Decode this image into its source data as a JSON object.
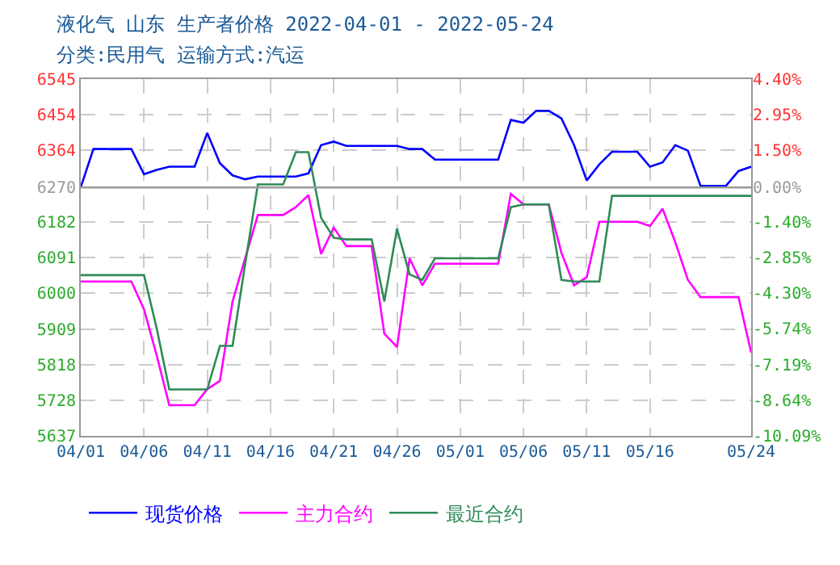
{
  "chart_data": {
    "type": "line",
    "title": "液化气 山东 生产者价格 2022-04-01 - 2022-05-24",
    "subtitle": "分类:民用气 运输方式:汽运",
    "x": [
      "2022-04-01",
      "2022-04-02",
      "2022-04-03",
      "2022-04-04",
      "2022-04-05",
      "2022-04-06",
      "2022-04-07",
      "2022-04-08",
      "2022-04-09",
      "2022-04-10",
      "2022-04-11",
      "2022-04-12",
      "2022-04-13",
      "2022-04-14",
      "2022-04-15",
      "2022-04-16",
      "2022-04-17",
      "2022-04-18",
      "2022-04-19",
      "2022-04-20",
      "2022-04-21",
      "2022-04-22",
      "2022-04-23",
      "2022-04-24",
      "2022-04-25",
      "2022-04-26",
      "2022-04-27",
      "2022-04-28",
      "2022-04-29",
      "2022-04-30",
      "2022-05-01",
      "2022-05-02",
      "2022-05-03",
      "2022-05-04",
      "2022-05-05",
      "2022-05-06",
      "2022-05-07",
      "2022-05-08",
      "2022-05-09",
      "2022-05-10",
      "2022-05-11",
      "2022-05-12",
      "2022-05-13",
      "2022-05-14",
      "2022-05-15",
      "2022-05-16",
      "2022-05-17",
      "2022-05-18",
      "2022-05-19",
      "2022-05-20",
      "2022-05-21",
      "2022-05-22",
      "2022-05-23",
      "2022-05-24"
    ],
    "series": [
      {
        "name": "现货价格",
        "color": "#0000ff",
        "values": [
          6270,
          6367,
          6367,
          6367,
          6367,
          6303,
          6314,
          6322,
          6322,
          6322,
          6408,
          6331,
          6300,
          6290,
          6297,
          6297,
          6297,
          6297,
          6305,
          6377,
          6386,
          6375,
          6375,
          6375,
          6375,
          6375,
          6367,
          6367,
          6340,
          6340,
          6340,
          6340,
          6340,
          6340,
          6441,
          6434,
          6464,
          6464,
          6445,
          6377,
          6287,
          6328,
          6360,
          6360,
          6360,
          6322,
          6333,
          6377,
          6363,
          6273,
          6273,
          6273,
          6311,
          6322
        ]
      },
      {
        "name": "主力合约",
        "color": "#ff00ff",
        "values": [
          6030,
          6030,
          6030,
          6030,
          6030,
          5959,
          5842,
          5715,
          5715,
          5715,
          5756,
          5777,
          5979,
          6089,
          6199,
          6199,
          6199,
          6219,
          6250,
          6100,
          6167,
          6120,
          6120,
          6120,
          5897,
          5863,
          6089,
          6020,
          6075,
          6075,
          6075,
          6075,
          6075,
          6075,
          6253,
          6226,
          6226,
          6226,
          6103,
          6020,
          6041,
          6182,
          6182,
          6182,
          6182,
          6171,
          6215,
          6130,
          6034,
          5990,
          5990,
          5990,
          5990,
          5849
        ]
      },
      {
        "name": "最近合约",
        "color": "#2e8b57",
        "values": [
          6046,
          6046,
          6046,
          6046,
          6046,
          6046,
          5911,
          5755,
          5755,
          5755,
          5755,
          5866,
          5866,
          6075,
          6277,
          6277,
          6277,
          6359,
          6359,
          6192,
          6141,
          6137,
          6137,
          6137,
          5979,
          6164,
          6048,
          6034,
          6089,
          6089,
          6089,
          6089,
          6089,
          6089,
          6219,
          6226,
          6226,
          6226,
          6034,
          6030,
          6030,
          6030,
          6248,
          6248,
          6248,
          6248,
          6248,
          6248,
          6248,
          6248,
          6248,
          6248,
          6248,
          6248
        ]
      }
    ],
    "xlim": [
      "2022-04-01",
      "2022-05-24"
    ],
    "xticks": [
      {
        "value": "2022-04-01",
        "label": "04/01"
      },
      {
        "value": "2022-04-06",
        "label": "04/06"
      },
      {
        "value": "2022-04-11",
        "label": "04/11"
      },
      {
        "value": "2022-04-16",
        "label": "04/16"
      },
      {
        "value": "2022-04-21",
        "label": "04/21"
      },
      {
        "value": "2022-04-26",
        "label": "04/26"
      },
      {
        "value": "2022-05-01",
        "label": "05/01"
      },
      {
        "value": "2022-05-06",
        "label": "05/06"
      },
      {
        "value": "2022-05-11",
        "label": "05/11"
      },
      {
        "value": "2022-05-16",
        "label": "05/16"
      },
      {
        "value": "2022-05-24",
        "label": "05/24"
      }
    ],
    "ylim": [
      5637,
      6545
    ],
    "yticks": [
      5637,
      5728,
      5818,
      5909,
      6000,
      6091,
      6182,
      6270,
      6364,
      6454,
      6545
    ],
    "y2lim": [
      -10.09,
      4.4
    ],
    "y2ticks": [
      {
        "value": -10.09,
        "label": "-10.09%"
      },
      {
        "value": -8.64,
        "label": "-8.64%"
      },
      {
        "value": -7.19,
        "label": "-7.19%"
      },
      {
        "value": -5.74,
        "label": "-5.74%"
      },
      {
        "value": -4.3,
        "label": "-4.30%"
      },
      {
        "value": -2.85,
        "label": "-2.85%"
      },
      {
        "value": -1.4,
        "label": "-1.40%"
      },
      {
        "value": 0,
        "label": "0.00%"
      },
      {
        "value": 1.5,
        "label": "1.50%"
      },
      {
        "value": 2.95,
        "label": "2.95%"
      },
      {
        "value": 4.4,
        "label": "4.40%"
      }
    ],
    "ref_lines": [
      {
        "axis": "y2",
        "value": 0,
        "color": "#999999"
      }
    ],
    "grid": true,
    "legend": "bottom",
    "marker": "none",
    "line_style": "solid"
  }
}
